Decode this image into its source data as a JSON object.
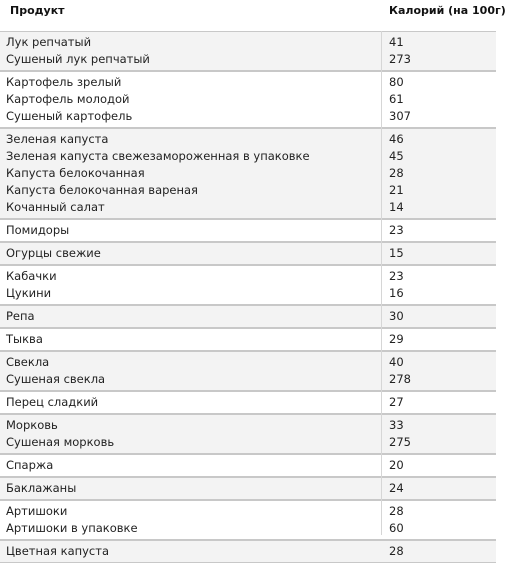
{
  "header": {
    "product": "Продукт",
    "calories": "Калорий (на 100г)"
  },
  "groups": [
    {
      "rows": [
        {
          "name": "Лук репчатый",
          "cal": "41"
        },
        {
          "name": "Сушеный лук репчатый",
          "cal": "273"
        }
      ]
    },
    {
      "rows": [
        {
          "name": "Картофель зрелый",
          "cal": "80"
        },
        {
          "name": "Картофель молодой",
          "cal": "61"
        },
        {
          "name": "Сушеный картофель",
          "cal": "307"
        }
      ]
    },
    {
      "rows": [
        {
          "name": "Зеленая капуста",
          "cal": "46"
        },
        {
          "name": "Зеленая капуста свежезамороженная в упаковке",
          "cal": "45"
        },
        {
          "name": "Капуста белокочанная",
          "cal": "28"
        },
        {
          "name": "Капуста белокочанная вареная",
          "cal": "21"
        },
        {
          "name": "Кочанный салат",
          "cal": "14"
        }
      ]
    },
    {
      "rows": [
        {
          "name": "Помидоры",
          "cal": "23"
        }
      ]
    },
    {
      "rows": [
        {
          "name": "Огурцы свежие",
          "cal": "15"
        }
      ]
    },
    {
      "rows": [
        {
          "name": "Кабачки",
          "cal": "23"
        },
        {
          "name": "Цукини",
          "cal": "16"
        }
      ]
    },
    {
      "rows": [
        {
          "name": "Репа",
          "cal": "30"
        }
      ]
    },
    {
      "rows": [
        {
          "name": "Тыква",
          "cal": "29"
        }
      ]
    },
    {
      "rows": [
        {
          "name": "Свекла",
          "cal": "40"
        },
        {
          "name": "Сушеная свекла",
          "cal": "278"
        }
      ]
    },
    {
      "rows": [
        {
          "name": "Перец сладкий",
          "cal": "27"
        }
      ]
    },
    {
      "rows": [
        {
          "name": "Морковь",
          "cal": "33"
        },
        {
          "name": "Сушеная морковь",
          "cal": "275"
        }
      ]
    },
    {
      "rows": [
        {
          "name": "Спаржа",
          "cal": "20"
        }
      ]
    },
    {
      "rows": [
        {
          "name": "Баклажаны",
          "cal": "24"
        }
      ]
    },
    {
      "rows": [
        {
          "name": "Артишоки",
          "cal": "28"
        },
        {
          "name": "Артишоки в упаковке",
          "cal": "60"
        }
      ]
    },
    {
      "rows": [
        {
          "name": "Цветная капуста",
          "cal": "28"
        }
      ]
    }
  ]
}
